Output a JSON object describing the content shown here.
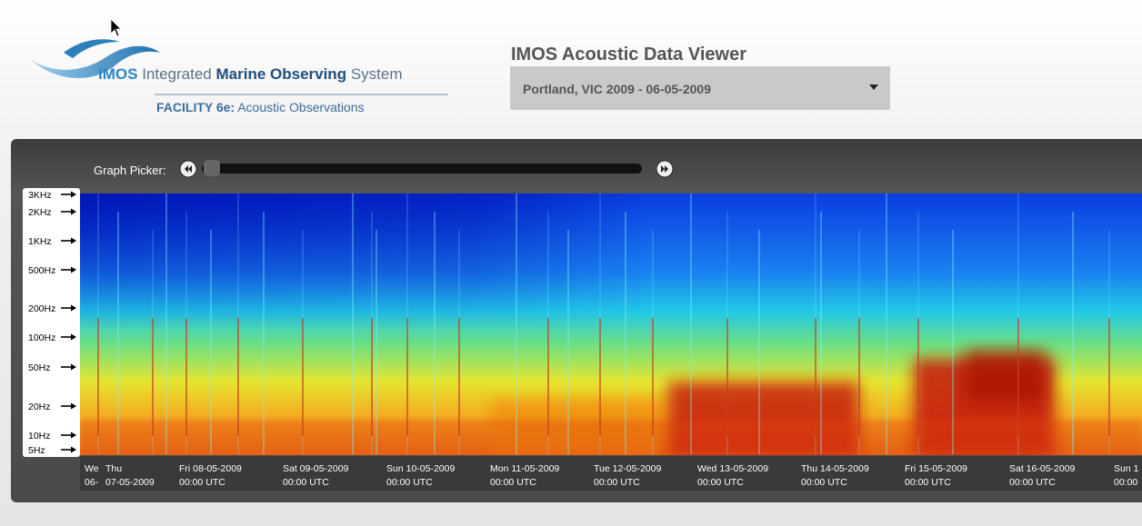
{
  "header": {
    "logo": {
      "acronym": "IMOS",
      "name_part1": "Integrated",
      "name_bold": "Marine Observing",
      "name_part2": "System",
      "facility": "FACILITY 6e:",
      "facility_name": "Acoustic Observations"
    },
    "title": "IMOS Acoustic Data Viewer",
    "dataset_select": "Portland, VIC 2009 - 06-05-2009"
  },
  "viewer": {
    "graph_picker_label": "Graph Picker:",
    "frequency_labels": [
      "3KHz",
      "2KHz",
      "1KHz",
      "500Hz",
      "200Hz",
      "100Hz",
      "50Hz",
      "20Hz",
      "10Hz",
      "5Hz"
    ],
    "time_labels": [
      {
        "line1": "We",
        "line2": "06-"
      },
      {
        "line1": "Thu",
        "line2": "07-05-2009"
      },
      {
        "line1": "Fri 08-05-2009",
        "line2": "00:00 UTC"
      },
      {
        "line1": "Sat 09-05-2009",
        "line2": "00:00 UTC"
      },
      {
        "line1": "Sun 10-05-2009",
        "line2": "00:00 UTC"
      },
      {
        "line1": "Mon 11-05-2009",
        "line2": "00:00 UTC"
      },
      {
        "line1": "Tue 12-05-2009",
        "line2": "00:00 UTC"
      },
      {
        "line1": "Wed 13-05-2009",
        "line2": "00:00 UTC"
      },
      {
        "line1": "Thu 14-05-2009",
        "line2": "00:00 UTC"
      },
      {
        "line1": "Fri 15-05-2009",
        "line2": "00:00 UTC"
      },
      {
        "line1": "Sat 16-05-2009",
        "line2": "00:00 UTC"
      },
      {
        "line1": "Sun 1",
        "line2": "00:00"
      }
    ]
  }
}
